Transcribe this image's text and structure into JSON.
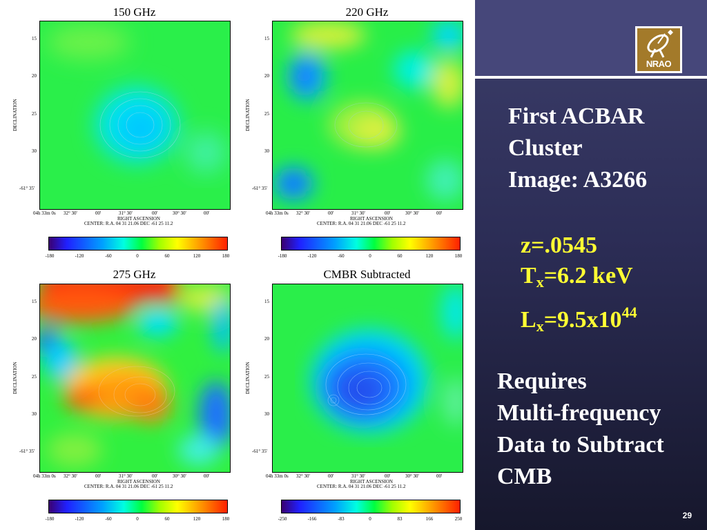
{
  "panels": [
    {
      "title": "150 GHz",
      "dec_ticks": [
        "15",
        "20",
        "25",
        "30",
        "-61° 35'"
      ],
      "ra_ticks": [
        "04h 33m 0s",
        "32° 30'",
        "00'",
        "31° 30'",
        "00'",
        "30° 30'",
        "00'"
      ],
      "ra_label": "RIGHT ASCENSION",
      "center_label": "CENTER: R.A. 04 31 21.06  DEC -61 25 11.2",
      "dec_label": "DECLINATION",
      "colorbar_ticks": [
        "-180",
        "-120",
        "-60",
        "0",
        "60",
        "120",
        "180"
      ]
    },
    {
      "title": "220 GHz",
      "dec_ticks": [
        "15",
        "20",
        "25",
        "30",
        "-61° 35'"
      ],
      "ra_ticks": [
        "04h 33m 0s",
        "32° 30'",
        "00'",
        "31° 30'",
        "00'",
        "30° 30'",
        "00'"
      ],
      "ra_label": "RIGHT ASCENSION",
      "center_label": "CENTER: R.A. 04 31 21.06  DEC -61 25 11.2",
      "dec_label": "DECLINATION",
      "colorbar_ticks": [
        "-180",
        "-120",
        "-60",
        "0",
        "60",
        "120",
        "180"
      ]
    },
    {
      "title": "275 GHz",
      "dec_ticks": [
        "15",
        "20",
        "25",
        "30",
        "-61° 35'"
      ],
      "ra_ticks": [
        "04h 33m 0s",
        "32° 30'",
        "00'",
        "31° 30'",
        "00'",
        "30° 30'",
        "00'"
      ],
      "ra_label": "RIGHT ASCENSION",
      "center_label": "CENTER: R.A. 04 31 21.06  DEC -61 25 11.2",
      "dec_label": "DECLINATION",
      "colorbar_ticks": [
        "-180",
        "-120",
        "-60",
        "0",
        "60",
        "120",
        "180"
      ]
    },
    {
      "title": "CMBR Subtracted",
      "dec_ticks": [
        "15",
        "20",
        "25",
        "30",
        "-61° 35'"
      ],
      "ra_ticks": [
        "04h 33m 0s",
        "32° 30'",
        "00'",
        "31° 30'",
        "00'",
        "30° 30'",
        "00'"
      ],
      "ra_label": "RIGHT ASCENSION",
      "center_label": "CENTER: R.A. 04 31 21.06  DEC -61 25 11.2",
      "dec_label": "DECLINATION",
      "colorbar_ticks": [
        "-250",
        "-166",
        "-83",
        "0",
        "83",
        "166",
        "250"
      ]
    }
  ],
  "logo": {
    "text": "NRAO",
    "color": "#a37a2a"
  },
  "title_lines": [
    "First ACBAR",
    "Cluster",
    "Image: A3266"
  ],
  "params": {
    "z": "z=.0545",
    "tx_prefix": "T",
    "tx_sub": "x",
    "tx_value": "=6.2 keV",
    "lx_prefix": "L",
    "lx_sub": "x",
    "lx_value": "=9.5x10",
    "lx_sup": "44"
  },
  "note_lines": [
    "Requires",
    "Multi-frequency",
    "Data to Subtract",
    "CMB"
  ],
  "page_number": "29",
  "colors": {
    "accent_yellow": "#ffff33",
    "panel_bg": "#2c2d56",
    "band": "#46477a"
  }
}
